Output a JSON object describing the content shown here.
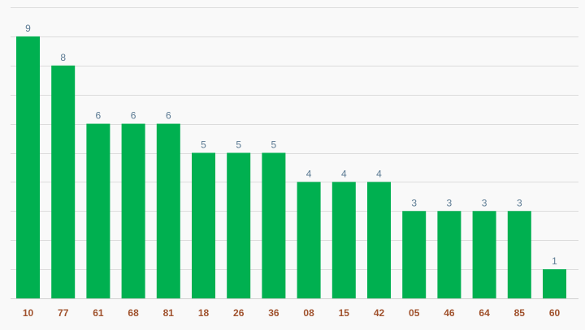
{
  "chart_data": {
    "type": "bar",
    "categories": [
      "10",
      "77",
      "61",
      "68",
      "81",
      "18",
      "26",
      "36",
      "08",
      "15",
      "42",
      "05",
      "46",
      "64",
      "85",
      "60"
    ],
    "values": [
      9,
      8,
      6,
      6,
      6,
      5,
      5,
      5,
      4,
      4,
      4,
      3,
      3,
      3,
      3,
      1
    ],
    "title": "",
    "xlabel": "",
    "ylabel": "",
    "ylim": [
      0,
      10
    ],
    "grid": true,
    "legend": "none",
    "colors": {
      "bar": "#00b050",
      "data_label": "#5b7a93",
      "category_label": "#a0522d",
      "grid": "#dcdcdc",
      "background": "#f9f9f9"
    }
  }
}
